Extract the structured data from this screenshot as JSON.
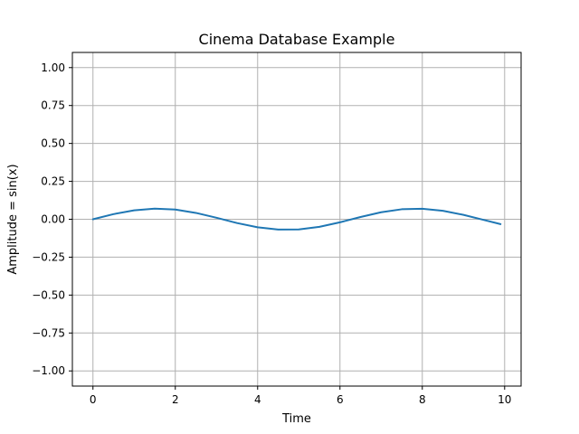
{
  "chart_data": {
    "type": "line",
    "title": "Cinema Database Example",
    "xlabel": "Time",
    "ylabel": "Amplitude = sin(x)",
    "xlim": [
      -0.5,
      10.4
    ],
    "ylim": [
      -1.1,
      1.1
    ],
    "grid": true,
    "x_ticks": [
      0,
      2,
      4,
      6,
      8,
      10
    ],
    "x_tick_labels": [
      "0",
      "2",
      "4",
      "6",
      "8",
      "10"
    ],
    "y_ticks": [
      -1.0,
      -0.75,
      -0.5,
      -0.25,
      0.0,
      0.25,
      0.5,
      0.75,
      1.0
    ],
    "y_tick_labels": [
      "−1.00",
      "−0.75",
      "−0.50",
      "−0.25",
      "0.00",
      "0.25",
      "0.50",
      "0.75",
      "1.00"
    ],
    "series": [
      {
        "color": "#1f77b4",
        "x": [
          0.0,
          0.5,
          1.0,
          1.5,
          2.0,
          2.5,
          3.0,
          3.5,
          4.0,
          4.5,
          5.0,
          5.5,
          6.0,
          6.5,
          7.0,
          7.5,
          8.0,
          8.5,
          9.0,
          9.5,
          9.9
        ],
        "y": [
          0.0,
          0.034,
          0.059,
          0.07,
          0.064,
          0.042,
          0.01,
          -0.025,
          -0.053,
          -0.068,
          -0.067,
          -0.05,
          -0.02,
          0.015,
          0.046,
          0.066,
          0.069,
          0.056,
          0.029,
          -0.005,
          -0.032
        ]
      }
    ]
  }
}
